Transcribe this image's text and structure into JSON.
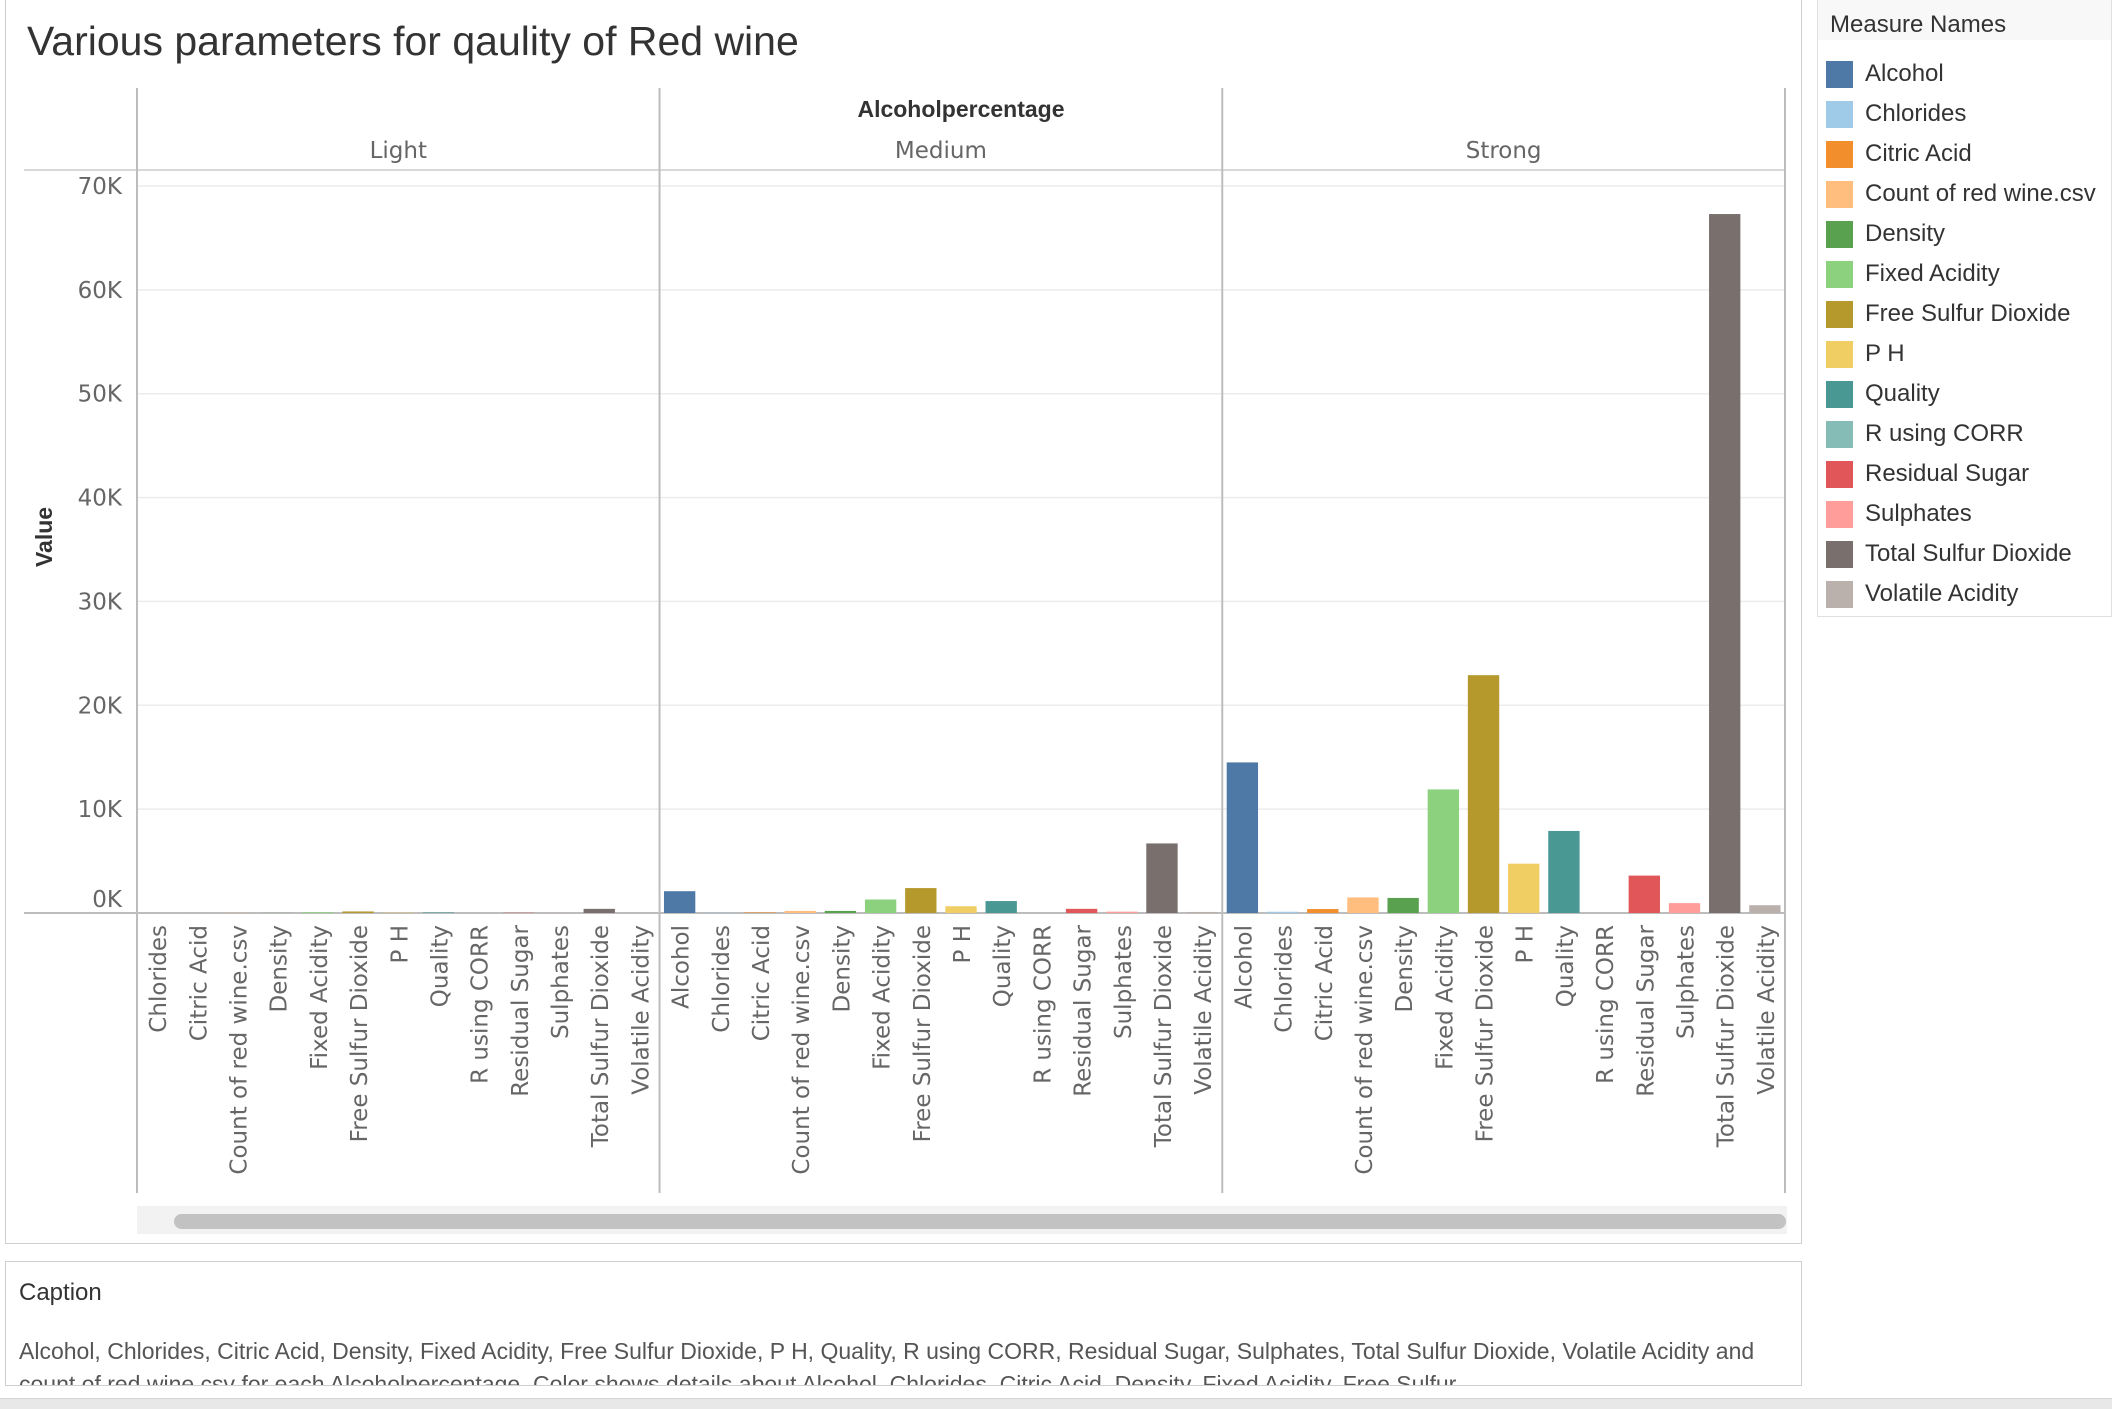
{
  "chart_data": {
    "type": "bar",
    "title": "Various parameters for qaulity of  Red wine",
    "column_header": "Alcoholpercentage",
    "ylabel": "Value",
    "ylim": [
      0,
      70000
    ],
    "y_ticks": [
      {
        "value": 0,
        "label": "0K"
      },
      {
        "value": 10000,
        "label": "10K"
      },
      {
        "value": 20000,
        "label": "20K"
      },
      {
        "value": 30000,
        "label": "30K"
      },
      {
        "value": 40000,
        "label": "40K"
      },
      {
        "value": 50000,
        "label": "50K"
      },
      {
        "value": 60000,
        "label": "60K"
      },
      {
        "value": 70000,
        "label": "70K"
      }
    ],
    "grid": true,
    "legend_position": "right",
    "panels": [
      {
        "name": "Light",
        "bars": [
          {
            "measure": "Chlorides",
            "value": 1
          },
          {
            "measure": "Citric Acid",
            "value": 2
          },
          {
            "measure": "Count of red wine.csv",
            "value": 10
          },
          {
            "measure": "Density",
            "value": 10
          },
          {
            "measure": "Fixed Acidity",
            "value": 80
          },
          {
            "measure": "Free Sulfur Dioxide",
            "value": 150
          },
          {
            "measure": "P H",
            "value": 33
          },
          {
            "measure": "Quality",
            "value": 50
          },
          {
            "measure": "R using CORR",
            "value": 0
          },
          {
            "measure": "Residual Sugar",
            "value": 25
          },
          {
            "measure": "Sulphates",
            "value": 6
          },
          {
            "measure": "Total Sulfur Dioxide",
            "value": 400
          },
          {
            "measure": "Volatile Acidity",
            "value": 7
          }
        ]
      },
      {
        "name": "Medium",
        "bars": [
          {
            "measure": "Alcohol",
            "value": 2100
          },
          {
            "measure": "Chlorides",
            "value": 16
          },
          {
            "measure": "Citric Acid",
            "value": 50
          },
          {
            "measure": "Count of red wine.csv",
            "value": 200
          },
          {
            "measure": "Density",
            "value": 200
          },
          {
            "measure": "Fixed Acidity",
            "value": 1300
          },
          {
            "measure": "Free Sulfur Dioxide",
            "value": 2400
          },
          {
            "measure": "P H",
            "value": 650
          },
          {
            "measure": "Quality",
            "value": 1150
          },
          {
            "measure": "R using CORR",
            "value": 0
          },
          {
            "measure": "Residual Sugar",
            "value": 400
          },
          {
            "measure": "Sulphates",
            "value": 130
          },
          {
            "measure": "Total Sulfur Dioxide",
            "value": 6700
          },
          {
            "measure": "Volatile Acidity",
            "value": 100
          }
        ]
      },
      {
        "name": "Strong",
        "bars": [
          {
            "measure": "Alcohol",
            "value": 14500
          },
          {
            "measure": "Chlorides",
            "value": 120
          },
          {
            "measure": "Citric Acid",
            "value": 380
          },
          {
            "measure": "Count of red wine.csv",
            "value": 1500
          },
          {
            "measure": "Density",
            "value": 1450
          },
          {
            "measure": "Fixed Acidity",
            "value": 11900
          },
          {
            "measure": "Free Sulfur Dioxide",
            "value": 22900
          },
          {
            "measure": "P H",
            "value": 4750
          },
          {
            "measure": "Quality",
            "value": 7900
          },
          {
            "measure": "R using CORR",
            "value": 0
          },
          {
            "measure": "Residual Sugar",
            "value": 3600
          },
          {
            "measure": "Sulphates",
            "value": 950
          },
          {
            "measure": "Total Sulfur Dioxide",
            "value": 67300
          },
          {
            "measure": "Volatile Acidity",
            "value": 750
          }
        ]
      }
    ]
  },
  "legend": {
    "title": "Measure Names",
    "items": [
      {
        "label": "Alcohol",
        "color": "#4e79a7"
      },
      {
        "label": "Chlorides",
        "color": "#a0cbe8"
      },
      {
        "label": "Citric Acid",
        "color": "#f28e2b"
      },
      {
        "label": "Count of red wine.csv",
        "color": "#ffbe7d"
      },
      {
        "label": "Density",
        "color": "#59a14f"
      },
      {
        "label": "Fixed Acidity",
        "color": "#8cd17d"
      },
      {
        "label": "Free Sulfur Dioxide",
        "color": "#b6992d"
      },
      {
        "label": "P H",
        "color": "#f1ce63"
      },
      {
        "label": "Quality",
        "color": "#499894"
      },
      {
        "label": "R using CORR",
        "color": "#86bcb6"
      },
      {
        "label": "Residual Sugar",
        "color": "#e15759"
      },
      {
        "label": "Sulphates",
        "color": "#ff9d9a"
      },
      {
        "label": "Total Sulfur Dioxide",
        "color": "#79706e"
      },
      {
        "label": "Volatile Acidity",
        "color": "#bab0ac"
      }
    ]
  },
  "caption": {
    "title": "Caption",
    "text": "Alcohol, Chlorides, Citric Acid, Density, Fixed Acidity, Free Sulfur Dioxide, P H, Quality, R using CORR, Residual Sugar, Sulphates, Total Sulfur Dioxide, Volatile Acidity and count of red wine.csv for each Alcoholpercentage.  Color shows details about Alcohol, Chlorides, Citric Acid, Density, Fixed Acidity, Free Sulfur"
  }
}
